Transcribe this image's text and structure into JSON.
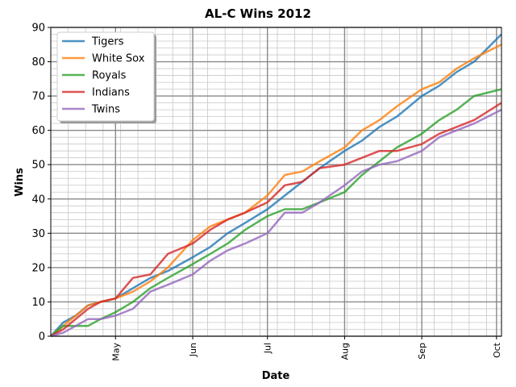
{
  "chart_data": {
    "type": "line",
    "title": "AL-C Wins 2012",
    "xlabel": "Date",
    "ylabel": "Wins",
    "ylim": [
      0,
      90
    ],
    "yticks": [
      0,
      10,
      20,
      30,
      40,
      50,
      60,
      70,
      80,
      90
    ],
    "xlim": [
      "2012-04-05",
      "2012-10-03"
    ],
    "xticks": [
      {
        "label": "May",
        "date": "2012-05-01"
      },
      {
        "label": "Jun",
        "date": "2012-06-01"
      },
      {
        "label": "Jul",
        "date": "2012-07-01"
      },
      {
        "label": "Aug",
        "date": "2012-08-01"
      },
      {
        "label": "Sep",
        "date": "2012-09-01"
      },
      {
        "label": "Oct",
        "date": "2012-10-01"
      }
    ],
    "grid": true,
    "minor_grid": true,
    "legend_position": "top-left",
    "series": [
      {
        "name": "Tigers",
        "color": "#1f77b4",
        "x": [
          "2012-04-05",
          "2012-04-10",
          "2012-04-15",
          "2012-04-20",
          "2012-04-25",
          "2012-05-01",
          "2012-05-08",
          "2012-05-15",
          "2012-05-22",
          "2012-06-01",
          "2012-06-08",
          "2012-06-15",
          "2012-06-22",
          "2012-07-01",
          "2012-07-08",
          "2012-07-15",
          "2012-07-22",
          "2012-08-01",
          "2012-08-08",
          "2012-08-15",
          "2012-08-22",
          "2012-09-01",
          "2012-09-08",
          "2012-09-15",
          "2012-09-22",
          "2012-10-03"
        ],
        "y": [
          0,
          4,
          6,
          9,
          10,
          11,
          14,
          17,
          19,
          23,
          26,
          30,
          33,
          37,
          41,
          45,
          49,
          54,
          57,
          61,
          64,
          70,
          73,
          77,
          80,
          88
        ]
      },
      {
        "name": "White Sox",
        "color": "#ff7f0e",
        "x": [
          "2012-04-05",
          "2012-04-10",
          "2012-04-15",
          "2012-04-20",
          "2012-04-25",
          "2012-05-01",
          "2012-05-08",
          "2012-05-15",
          "2012-05-22",
          "2012-06-01",
          "2012-06-08",
          "2012-06-15",
          "2012-06-22",
          "2012-07-01",
          "2012-07-08",
          "2012-07-15",
          "2012-07-22",
          "2012-08-01",
          "2012-08-08",
          "2012-08-15",
          "2012-08-22",
          "2012-09-01",
          "2012-09-08",
          "2012-09-15",
          "2012-09-22",
          "2012-10-03"
        ],
        "y": [
          0,
          3,
          6,
          9,
          10,
          11,
          13,
          16,
          20,
          28,
          32,
          34,
          36,
          41,
          47,
          48,
          51,
          55,
          60,
          63,
          67,
          72,
          74,
          78,
          81,
          85
        ]
      },
      {
        "name": "Royals",
        "color": "#2ca02c",
        "x": [
          "2012-04-05",
          "2012-04-10",
          "2012-04-15",
          "2012-04-20",
          "2012-04-25",
          "2012-05-01",
          "2012-05-08",
          "2012-05-15",
          "2012-05-22",
          "2012-06-01",
          "2012-06-08",
          "2012-06-15",
          "2012-06-22",
          "2012-07-01",
          "2012-07-08",
          "2012-07-15",
          "2012-07-22",
          "2012-08-01",
          "2012-08-08",
          "2012-08-15",
          "2012-08-22",
          "2012-09-01",
          "2012-09-08",
          "2012-09-15",
          "2012-09-22",
          "2012-10-03"
        ],
        "y": [
          0,
          3,
          3,
          3,
          5,
          7,
          10,
          14,
          17,
          21,
          24,
          27,
          31,
          35,
          37,
          37,
          39,
          42,
          47,
          51,
          55,
          59,
          63,
          66,
          70,
          72
        ]
      },
      {
        "name": "Indians",
        "color": "#d62728",
        "x": [
          "2012-04-05",
          "2012-04-10",
          "2012-04-15",
          "2012-04-20",
          "2012-04-25",
          "2012-05-01",
          "2012-05-08",
          "2012-05-15",
          "2012-05-22",
          "2012-06-01",
          "2012-06-08",
          "2012-06-15",
          "2012-06-22",
          "2012-07-01",
          "2012-07-08",
          "2012-07-15",
          "2012-07-22",
          "2012-08-01",
          "2012-08-08",
          "2012-08-15",
          "2012-08-22",
          "2012-09-01",
          "2012-09-08",
          "2012-09-15",
          "2012-09-22",
          "2012-10-03"
        ],
        "y": [
          0,
          2,
          5,
          8,
          10,
          11,
          17,
          18,
          24,
          27,
          31,
          34,
          36,
          39,
          44,
          45,
          49,
          50,
          52,
          54,
          54,
          56,
          59,
          61,
          63,
          68
        ]
      },
      {
        "name": "Twins",
        "color": "#9467bd",
        "x": [
          "2012-04-05",
          "2012-04-10",
          "2012-04-15",
          "2012-04-20",
          "2012-04-25",
          "2012-05-01",
          "2012-05-08",
          "2012-05-15",
          "2012-05-22",
          "2012-06-01",
          "2012-06-08",
          "2012-06-15",
          "2012-06-22",
          "2012-07-01",
          "2012-07-08",
          "2012-07-15",
          "2012-07-22",
          "2012-08-01",
          "2012-08-08",
          "2012-08-15",
          "2012-08-22",
          "2012-09-01",
          "2012-09-08",
          "2012-09-15",
          "2012-09-22",
          "2012-10-03"
        ],
        "y": [
          0,
          1,
          3,
          5,
          5,
          6,
          8,
          13,
          15,
          18,
          22,
          25,
          27,
          30,
          36,
          36,
          39,
          44,
          48,
          50,
          51,
          54,
          58,
          60,
          62,
          66
        ]
      }
    ]
  }
}
